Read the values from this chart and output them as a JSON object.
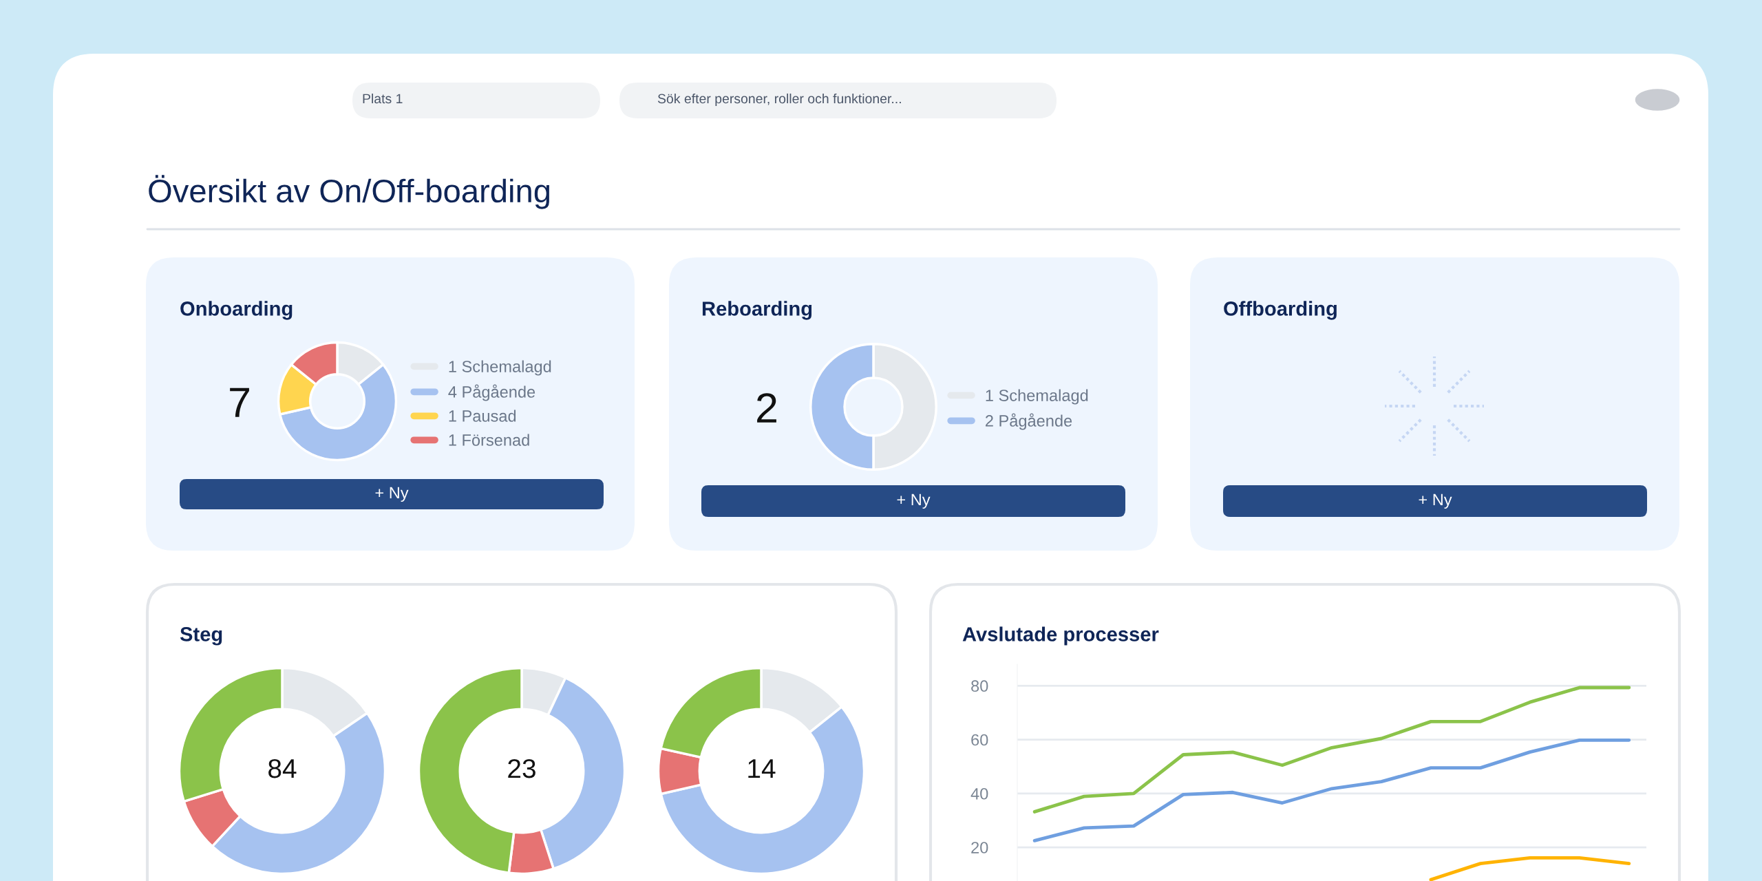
{
  "chart_data": [
    {
      "type": "other",
      "title": "Översikt av On/Off-boarding",
      "annotations": [
        "Plats 1",
        "Sök efter personer, roller och funktioner..."
      ]
    },
    {
      "type": "donut",
      "title": "Onboarding",
      "categories": [
        "1 Schemalagd",
        "4 Pågående",
        "1 Pausad",
        "1 Försenad"
      ],
      "values": [
        1,
        4,
        1,
        1
      ],
      "colors": [
        "#e5e9ed",
        "#a6c2f0",
        "#ffd54f",
        "#e67373"
      ],
      "legend": "right",
      "annotations": [
        "7",
        "+ Ny"
      ]
    },
    {
      "type": "donut",
      "title": "Reboarding",
      "categories": [
        "1 Schemalagd",
        "2 Pågående"
      ],
      "values": [
        50,
        50
      ],
      "colors": [
        "#e5e9ed",
        "#a6c2f0"
      ],
      "legend": "right",
      "annotations": [
        "2",
        "+ Ny"
      ]
    },
    {
      "type": "other",
      "title": "Offboarding",
      "annotations": [
        "+ Ny"
      ]
    },
    {
      "type": "donut",
      "title": "Steg",
      "categories": [
        null,
        null,
        null,
        null
      ],
      "values": [
        15.5,
        46.4,
        8.3,
        29.8
      ],
      "colors": [
        "#e5e9ed",
        "#a6c2f0",
        "#e67373",
        "#8bc34a"
      ],
      "annotations": [
        "84"
      ]
    },
    {
      "type": "donut",
      "categories": [
        null,
        null,
        null,
        null
      ],
      "values": [
        7,
        38,
        7,
        48
      ],
      "colors": [
        "#e5e9ed",
        "#a6c2f0",
        "#e67373",
        "#8bc34a"
      ],
      "annotations": [
        "23"
      ]
    },
    {
      "type": "donut",
      "categories": [
        null,
        null,
        null,
        null
      ],
      "values": [
        14.3,
        57.1,
        7.1,
        21.5
      ],
      "colors": [
        "#e5e9ed",
        "#a6c2f0",
        "#e67373",
        "#8bc34a"
      ],
      "annotations": [
        "14"
      ]
    },
    {
      "type": "line",
      "title": "Avslutade processer",
      "categories": [
        null,
        null,
        null,
        null,
        null,
        null,
        null,
        null,
        null,
        null,
        null,
        null,
        null
      ],
      "ylim": [
        7.5,
        88
      ],
      "yticks": [
        20,
        40,
        60,
        80
      ],
      "grid": "y",
      "tick_labels": "y",
      "series": [
        {
          "color": "#8bc34a",
          "values": [
            33.2,
            38.9,
            40,
            54.4,
            55.3,
            50.5,
            57,
            60.4,
            66.7,
            66.7,
            73.9,
            79.3,
            79.3
          ]
        },
        {
          "color": "#6f9fe0",
          "values": [
            22.5,
            27.2,
            27.9,
            39.6,
            40.4,
            36.5,
            41.8,
            44.4,
            49.5,
            49.5,
            55.4,
            59.8,
            59.8
          ]
        },
        {
          "color": "#ffb300",
          "values": [
            null,
            null,
            null,
            null,
            null,
            null,
            null,
            null,
            8,
            14,
            16.1,
            16.1,
            14
          ]
        }
      ]
    }
  ]
}
